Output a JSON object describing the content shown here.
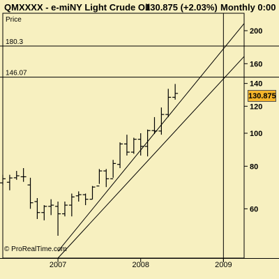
{
  "header": {
    "title": "QMXXXX - e-miNY Light Crude Oil",
    "price_change": "130.875 (+2.03%)",
    "period": "Monthly  0:00"
  },
  "price_badge": "130.875",
  "watermark": "© ProRealTime.com",
  "chart_data": {
    "type": "ohlc",
    "scale": "log",
    "yaxis_label": "Price",
    "ylim": [
      43,
      225
    ],
    "yticks": [
      60,
      80,
      100,
      120,
      140,
      160,
      200
    ],
    "xlim": [
      "2006-05",
      "2009-04"
    ],
    "xticks": [
      {
        "date": "2007-01",
        "label": "2007"
      },
      {
        "date": "2008-01",
        "label": "2008"
      },
      {
        "date": "2009-01",
        "label": "2009"
      }
    ],
    "last_price": 130.875,
    "grid": false,
    "levels": [
      {
        "label": "180.3",
        "value": 180.3
      },
      {
        "label": "146.07",
        "value": 146.07
      }
    ],
    "time_marker": "2009-01",
    "trend_lines": [
      {
        "from": {
          "date": "2007-01",
          "value": 45
        },
        "to": {
          "date": "2009-04",
          "value": 210
        }
      },
      {
        "from": {
          "date": "2007-01",
          "value": 43
        },
        "to": {
          "date": "2009-04",
          "value": 168
        }
      }
    ],
    "bars": [
      {
        "date": "2006-05",
        "open": 71.5,
        "high": 75.5,
        "low": 70.5,
        "close": 73.5
      },
      {
        "date": "2006-06",
        "open": 71.8,
        "high": 75.5,
        "low": 68,
        "close": 73.9
      },
      {
        "date": "2006-07",
        "open": 74,
        "high": 77.5,
        "low": 73,
        "close": 75.0
      },
      {
        "date": "2006-08",
        "open": 74.5,
        "high": 79,
        "low": 72,
        "close": 74.5
      },
      {
        "date": "2006-09",
        "open": 70.5,
        "high": 74,
        "low": 60,
        "close": 62.5
      },
      {
        "date": "2006-10",
        "open": 63,
        "high": 64.5,
        "low": 56,
        "close": 58.5
      },
      {
        "date": "2006-11",
        "open": 58.5,
        "high": 61.5,
        "low": 55.5,
        "close": 61
      },
      {
        "date": "2006-12",
        "open": 61,
        "high": 64,
        "low": 57.5,
        "close": 61.5
      },
      {
        "date": "2007-01",
        "open": 61,
        "high": 63,
        "low": 50,
        "close": 58
      },
      {
        "date": "2007-02",
        "open": 58,
        "high": 63,
        "low": 57,
        "close": 61.5
      },
      {
        "date": "2007-03",
        "open": 61.5,
        "high": 66.5,
        "low": 57,
        "close": 65
      },
      {
        "date": "2007-04",
        "open": 65.5,
        "high": 67.5,
        "low": 63,
        "close": 66
      },
      {
        "date": "2007-05",
        "open": 66,
        "high": 66.5,
        "low": 61.5,
        "close": 64
      },
      {
        "date": "2007-06",
        "open": 64,
        "high": 70,
        "low": 64,
        "close": 69.5
      },
      {
        "date": "2007-07",
        "open": 70,
        "high": 78.5,
        "low": 71,
        "close": 77.5
      },
      {
        "date": "2007-08",
        "open": 77.5,
        "high": 78.5,
        "low": 69.5,
        "close": 73.5
      },
      {
        "date": "2007-09",
        "open": 73.5,
        "high": 83.5,
        "low": 74,
        "close": 81.5
      },
      {
        "date": "2007-10",
        "open": 81,
        "high": 94,
        "low": 79,
        "close": 93
      },
      {
        "date": "2007-11",
        "open": 93,
        "high": 99,
        "low": 86,
        "close": 88
      },
      {
        "date": "2007-12",
        "open": 88,
        "high": 97,
        "low": 87,
        "close": 96
      },
      {
        "date": "2008-01",
        "open": 96,
        "high": 100,
        "low": 86,
        "close": 91.5
      },
      {
        "date": "2008-02",
        "open": 91.5,
        "high": 102.5,
        "low": 85.5,
        "close": 101.8
      },
      {
        "date": "2008-03",
        "open": 101.8,
        "high": 111.5,
        "low": 99.5,
        "close": 101.5
      },
      {
        "date": "2008-04",
        "open": 101.5,
        "high": 119,
        "low": 99,
        "close": 113.5
      },
      {
        "date": "2008-05",
        "open": 113.5,
        "high": 135,
        "low": 111.5,
        "close": 127.5
      },
      {
        "date": "2008-06",
        "open": 127.5,
        "high": 139.5,
        "low": 125.5,
        "close": 130.875
      }
    ]
  }
}
